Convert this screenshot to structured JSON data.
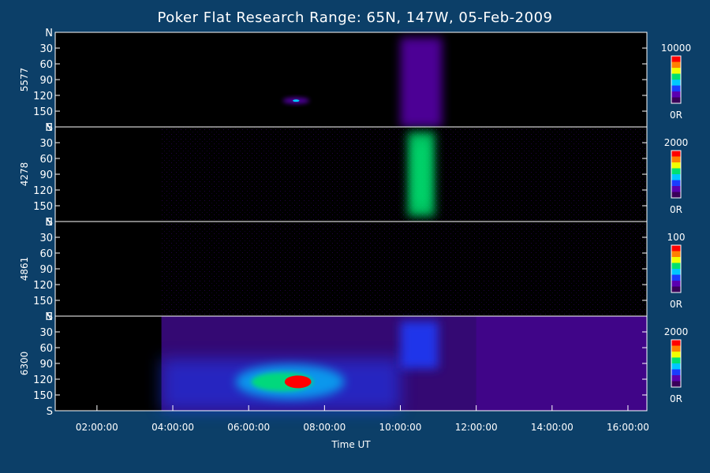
{
  "chart_data": {
    "type": "heatmap",
    "title": "Poker Flat Research Range: 65N, 147W, 05-Feb-2009",
    "xlabel": "Time UT",
    "x_ticks": [
      "02:00:00",
      "04:00:00",
      "06:00:00",
      "08:00:00",
      "10:00:00",
      "12:00:00",
      "14:00:00",
      "16:00:00"
    ],
    "x_range_hours": [
      0.9,
      16.5
    ],
    "y_ticks": [
      "N",
      "30",
      "60",
      "90",
      "120",
      "150",
      "S"
    ],
    "y_range_deg": [
      0,
      180
    ],
    "colormap": [
      "#3a005a",
      "#5a00b0",
      "#1a3cff",
      "#00c8ff",
      "#00e070",
      "#f0ff00",
      "#ff8000",
      "#ff0000"
    ],
    "panels": [
      {
        "label": "5577",
        "scale_max": "10000",
        "scale_min": "0R",
        "data_start_hours": 0.9,
        "features": [
          {
            "t_start": 6.9,
            "t_end": 7.6,
            "angle": 130,
            "intensity": 0.55
          },
          {
            "t_start": 10.0,
            "t_end": 11.1,
            "angle_start": 10,
            "angle_end": 180,
            "intensity": 0.18
          }
        ]
      },
      {
        "label": "4278",
        "scale_max": "2000",
        "scale_min": "0R",
        "data_start_hours": 3.7,
        "features": [
          {
            "t_start": 10.2,
            "t_end": 10.9,
            "angle_start": 10,
            "angle_end": 170,
            "intensity": 0.5
          }
        ]
      },
      {
        "label": "4861",
        "scale_max": "100",
        "scale_min": "0R",
        "data_start_hours": 3.7,
        "features": []
      },
      {
        "label": "6300",
        "scale_max": "2000",
        "scale_min": "0R",
        "data_start_hours": 3.7,
        "features": [
          {
            "t_start": 6.8,
            "t_end": 7.8,
            "angle": 125,
            "intensity": 1.0
          },
          {
            "t_start": 10.0,
            "t_end": 11.0,
            "angle_start": 10,
            "angle_end": 100,
            "intensity": 0.35
          }
        ]
      }
    ]
  }
}
